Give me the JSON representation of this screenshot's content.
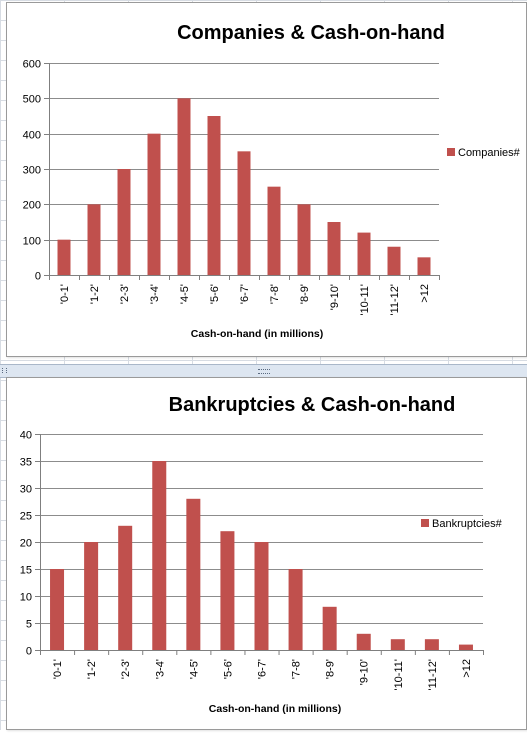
{
  "bar_color": "#C0504D",
  "chart_data": [
    {
      "type": "bar",
      "title": "Companies & Cash-on-hand",
      "xlabel": "Cash-on-hand  (in millions)",
      "ylabel": "",
      "ylim": [
        0,
        600
      ],
      "yticks": [
        0,
        100,
        200,
        300,
        400,
        500,
        600
      ],
      "grid": true,
      "legend": "right",
      "categories": [
        "'0-1'",
        "'1-2'",
        "'2-3'",
        "'3-4'",
        "'4-5'",
        "'5-6'",
        "'6-7'",
        "'7-8'",
        "'8-9'",
        "'9-10'",
        "'10-11'",
        "'11-12'",
        ">12"
      ],
      "series": [
        {
          "name": "Companies#",
          "color": "#C0504D",
          "values": [
            100,
            200,
            300,
            400,
            500,
            450,
            350,
            250,
            200,
            150,
            120,
            80,
            50
          ]
        }
      ]
    },
    {
      "type": "bar",
      "title": "Bankruptcies & Cash-on-hand",
      "xlabel": "Cash-on-hand  (in millions)",
      "ylabel": "",
      "ylim": [
        0,
        40
      ],
      "yticks": [
        0,
        5,
        10,
        15,
        20,
        25,
        30,
        35,
        40
      ],
      "grid": true,
      "legend": "right",
      "categories": [
        "'0-1'",
        "'1-2'",
        "'2-3'",
        "'3-4'",
        "'4-5'",
        "'5-6'",
        "'6-7'",
        "'7-8'",
        "'8-9'",
        "'9-10'",
        "'10-11'",
        "'11-12'",
        ">12"
      ],
      "series": [
        {
          "name": "Bankruptcies#",
          "color": "#C0504D",
          "values": [
            15,
            20,
            23,
            35,
            28,
            22,
            20,
            15,
            8,
            3,
            2,
            2,
            1
          ]
        }
      ]
    }
  ]
}
